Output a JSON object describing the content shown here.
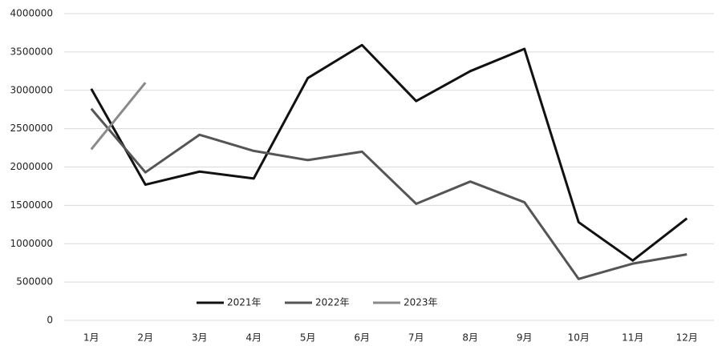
{
  "chart_data": {
    "type": "line",
    "categories": [
      "1月",
      "2月",
      "3月",
      "4月",
      "5月",
      "6月",
      "7月",
      "8月",
      "9月",
      "10月",
      "11月",
      "12月"
    ],
    "series": [
      {
        "name": "2021年",
        "color": "#111111",
        "values": [
          3020000,
          1770000,
          1940000,
          1850000,
          3160000,
          3590000,
          2860000,
          3250000,
          3540000,
          1280000,
          780000,
          1330000
        ]
      },
      {
        "name": "2022年",
        "color": "#555555",
        "values": [
          2760000,
          1930000,
          2420000,
          2210000,
          2090000,
          2200000,
          1520000,
          1810000,
          1540000,
          540000,
          740000,
          860000
        ]
      },
      {
        "name": "2023年",
        "color": "#8a8a8a",
        "values": [
          2230000,
          3100000,
          null,
          null,
          null,
          null,
          null,
          null,
          null,
          null,
          null,
          null
        ]
      }
    ],
    "ylim": [
      0,
      4000000
    ],
    "yticks": [
      0,
      500000,
      1000000,
      1500000,
      2000000,
      2500000,
      3000000,
      3500000,
      4000000
    ],
    "grid": true,
    "legend": "bottom"
  }
}
